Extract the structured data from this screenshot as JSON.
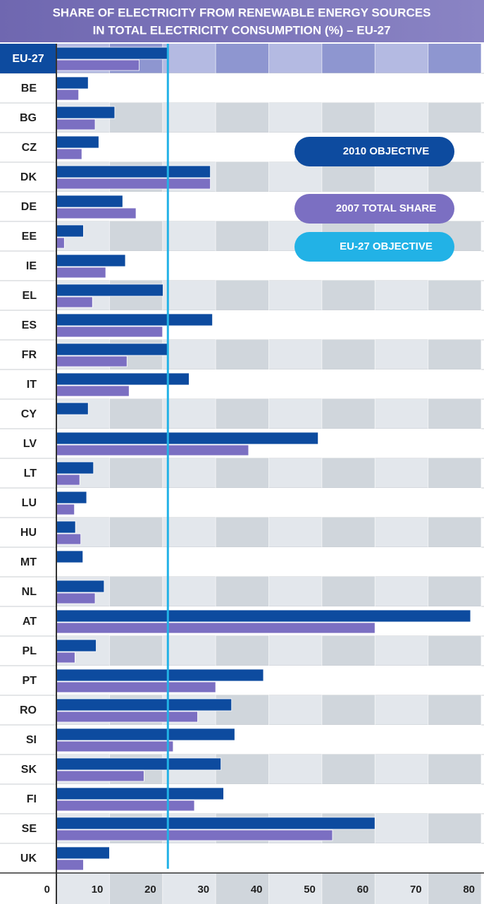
{
  "chart_data": {
    "type": "bar",
    "orientation": "horizontal",
    "title": "SHARE OF ELECTRICITY FROM RENEWABLE ENERGY SOURCES",
    "subtitle": "IN TOTAL ELECTRICITY CONSUMPTION (%) – EU-27",
    "categories": [
      "EU-27",
      "BE",
      "BG",
      "CZ",
      "DK",
      "DE",
      "EE",
      "IE",
      "EL",
      "ES",
      "FR",
      "IT",
      "CY",
      "LV",
      "LT",
      "LU",
      "HU",
      "MT",
      "NL",
      "AT",
      "PL",
      "PT",
      "RO",
      "SI",
      "SK",
      "FI",
      "SE",
      "UK"
    ],
    "series": [
      {
        "name": "2010 OBJECTIVE",
        "color": "#0d4b9f",
        "values": [
          21,
          6,
          11,
          8,
          29,
          12.5,
          5.1,
          13,
          20.1,
          29.4,
          21,
          25,
          6,
          49.3,
          7,
          5.7,
          3.6,
          5,
          9,
          78,
          7.5,
          39,
          33,
          33.6,
          31,
          31.5,
          60,
          10
        ]
      },
      {
        "name": "2007 TOTAL SHARE",
        "color": "#7b6fc2",
        "values": [
          15.6,
          4.2,
          7.3,
          4.8,
          29,
          15,
          1.5,
          9.3,
          6.8,
          20,
          13.3,
          13.7,
          0,
          36.2,
          4.4,
          3.4,
          4.6,
          0,
          7.3,
          60,
          3.5,
          30,
          26.6,
          22,
          16.5,
          26,
          52,
          5.1
        ]
      }
    ],
    "reference_line": {
      "label": "EU-27 OBJECTIVE",
      "value": 21,
      "color": "#22b2e6"
    },
    "xlim": [
      0,
      80
    ],
    "xticks": [
      0,
      10,
      20,
      30,
      40,
      50,
      60,
      70,
      80
    ]
  }
}
